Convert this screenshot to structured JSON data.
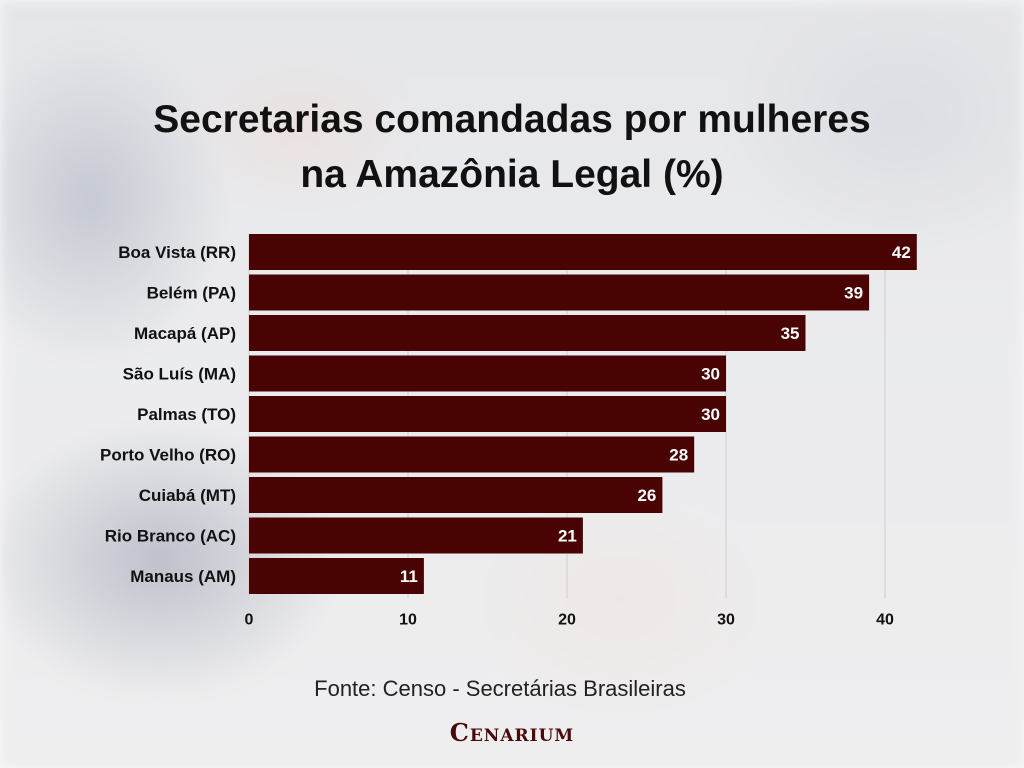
{
  "title": "Secretarias comandadas por mulheres\nna Amazônia Legal (%)",
  "source": "Fonte: Censo - Secretárias Brasileiras",
  "logo_text": "Cenarium",
  "colors": {
    "bar": "#4a0303",
    "bar_label": "#ffffff",
    "grid": "#cfcfcf",
    "text": "#111111"
  },
  "chart_data": {
    "type": "bar",
    "orientation": "horizontal",
    "title": "Secretarias comandadas por mulheres na Amazônia Legal (%)",
    "categories": [
      "Boa Vista (RR)",
      "Belém (PA)",
      "Macapá (AP)",
      "São Luís (MA)",
      "Palmas (TO)",
      "Porto Velho (RO)",
      "Cuiabá (MT)",
      "Rio Branco (AC)",
      "Manaus (AM)"
    ],
    "values": [
      42,
      39,
      35,
      30,
      30,
      28,
      26,
      21,
      11
    ],
    "xlim": [
      0,
      42
    ],
    "xticks": [
      0,
      10,
      20,
      30,
      40
    ],
    "grid": true,
    "data_labels": true
  }
}
